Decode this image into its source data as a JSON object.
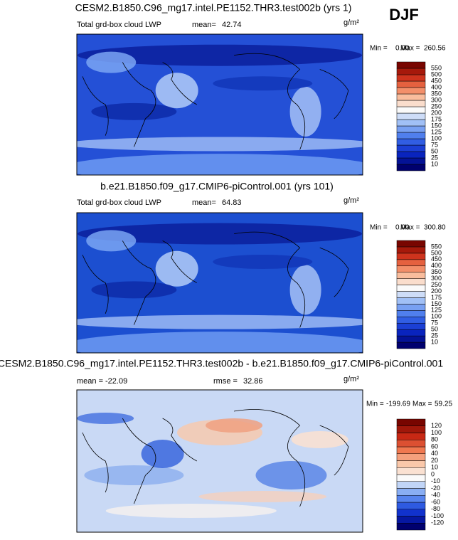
{
  "season": "DJF",
  "panels": [
    {
      "title": "CESM2.B1850.C96_mg17.intel.PE1152.THR3.test002b (yrs 1)",
      "variable": "Total grd-box cloud LWP",
      "stat_label": "mean=",
      "stat": "42.74",
      "units": "g/m²",
      "min_label": "Min =",
      "min": "0.00",
      "max_label": "Max =",
      "max": "260.56",
      "colorbar": [
        10,
        25,
        50,
        75,
        100,
        125,
        150,
        175,
        200,
        250,
        300,
        350,
        400,
        450,
        500,
        550
      ]
    },
    {
      "title": "b.e21.B1850.f09_g17.CMIP6-piControl.001 (yrs 101)",
      "variable": "Total grd-box cloud LWP",
      "stat_label": "mean=",
      "stat": "64.83",
      "units": "g/m²",
      "min_label": "Min =",
      "min": "0.00",
      "max_label": "Max =",
      "max": "300.80",
      "colorbar": [
        10,
        25,
        50,
        75,
        100,
        125,
        150,
        175,
        200,
        250,
        300,
        350,
        400,
        450,
        500,
        550
      ]
    },
    {
      "title": "CESM2.B1850.C96_mg17.intel.PE1152.THR3.test002b - b.e21.B1850.f09_g17.CMIP6-piControl.001",
      "stat_label": "mean =",
      "stat": "-22.09",
      "stat2_label": "rmse =",
      "stat2": "32.86",
      "units": "g/m²",
      "min_label": "Min =",
      "min": "-199.69",
      "max_label": "Max =",
      "max": "59.25",
      "colorbar": [
        -120,
        -100,
        -80,
        -60,
        -40,
        -20,
        -10,
        0,
        10,
        20,
        40,
        60,
        80,
        100,
        120
      ]
    }
  ]
}
